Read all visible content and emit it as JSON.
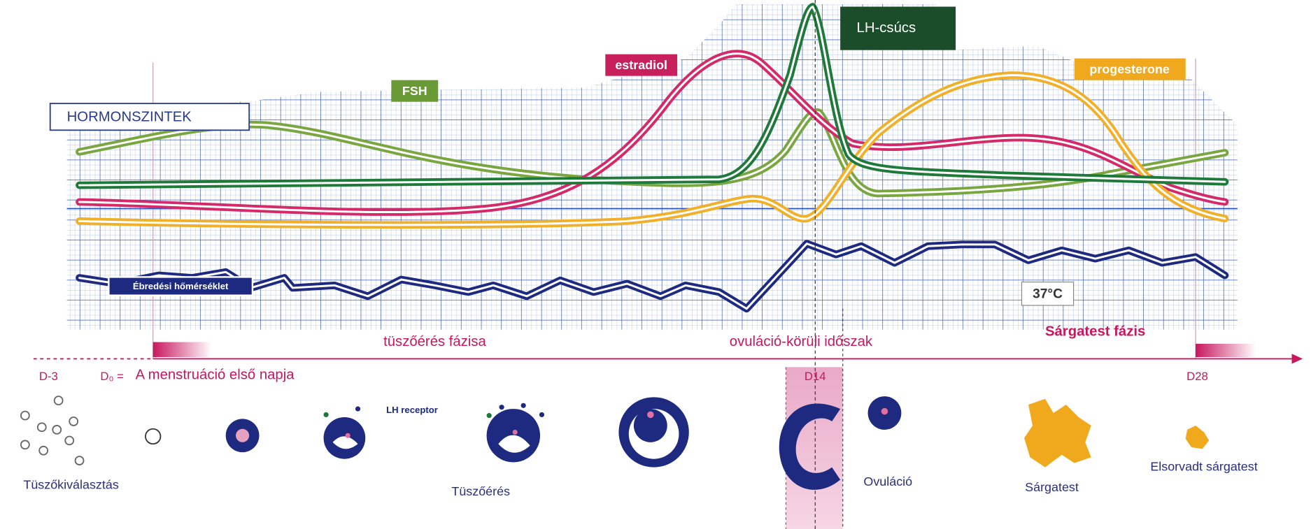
{
  "header": {
    "title": "HORMONSZINTEK"
  },
  "hormones": {
    "fsh": "FSH",
    "estradiol": "estradiol",
    "lh_peak": "LH-csúcs",
    "progesterone": "progesterone",
    "temperature": "Ébredési hőmérséklet",
    "temperature_ref": "37°C"
  },
  "phases": {
    "follicular": "tüszőérés fázisa",
    "ovulatory": "ovuláció-körüli időszak",
    "luteal": "Sárgatest fázis"
  },
  "days": {
    "d_minus3": "D-3",
    "d0": "D₀ =",
    "d0_text": "A menstruáció első napja",
    "d14": "D14",
    "d28": "D28"
  },
  "stages": {
    "lh_receptor": "LH receptor",
    "selection": "Tüszőkiválasztás",
    "maturation": "Tüszőérés",
    "ovulation": "Ovuláció",
    "corpus_luteum": "Sárgatest",
    "corpus_albicans": "Elsorvadt sárgatest"
  }
}
